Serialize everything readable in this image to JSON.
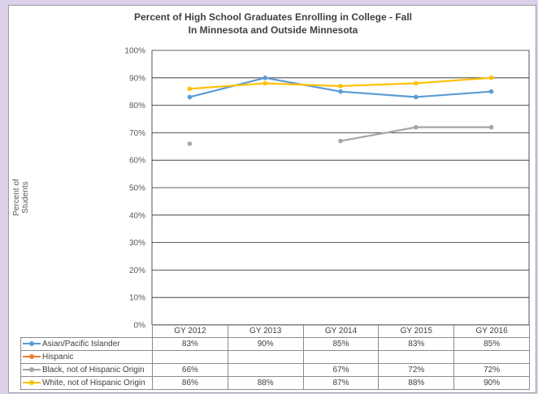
{
  "chart_data": {
    "type": "line",
    "title": [
      "Percent of High School Graduates Enrolling in College - Fall",
      "In Minnesota and Outside Minnesota"
    ],
    "ylabel": "Percent of Students",
    "categories": [
      "GY 2012",
      "GY 2013",
      "GY 2014",
      "GY 2015",
      "GY 2016"
    ],
    "ylim": [
      0,
      100
    ],
    "yticks": [
      "0%",
      "10%",
      "20%",
      "30%",
      "40%",
      "50%",
      "60%",
      "70%",
      "80%",
      "90%",
      "100%"
    ],
    "grid": true,
    "legend": "data-table",
    "series": [
      {
        "name": "Asian/Pacific Islander",
        "color": "#5b9bd5",
        "values": [
          83,
          90,
          85,
          83,
          85
        ],
        "labels": [
          "83%",
          "90%",
          "85%",
          "83%",
          "85%"
        ]
      },
      {
        "name": "Hispanic",
        "color": "#ed7d31",
        "values": [
          null,
          null,
          null,
          null,
          null
        ],
        "labels": [
          "",
          "",
          "",
          "",
          ""
        ]
      },
      {
        "name": "Black, not of Hispanic Origin",
        "color": "#a5a5a5",
        "values": [
          66,
          null,
          67,
          72,
          72
        ],
        "labels": [
          "66%",
          "",
          "67%",
          "72%",
          "72%"
        ]
      },
      {
        "name": "White, not of Hispanic Origin",
        "color": "#ffc000",
        "values": [
          86,
          88,
          87,
          88,
          90
        ],
        "labels": [
          "86%",
          "88%",
          "87%",
          "88%",
          "90%"
        ]
      }
    ]
  }
}
